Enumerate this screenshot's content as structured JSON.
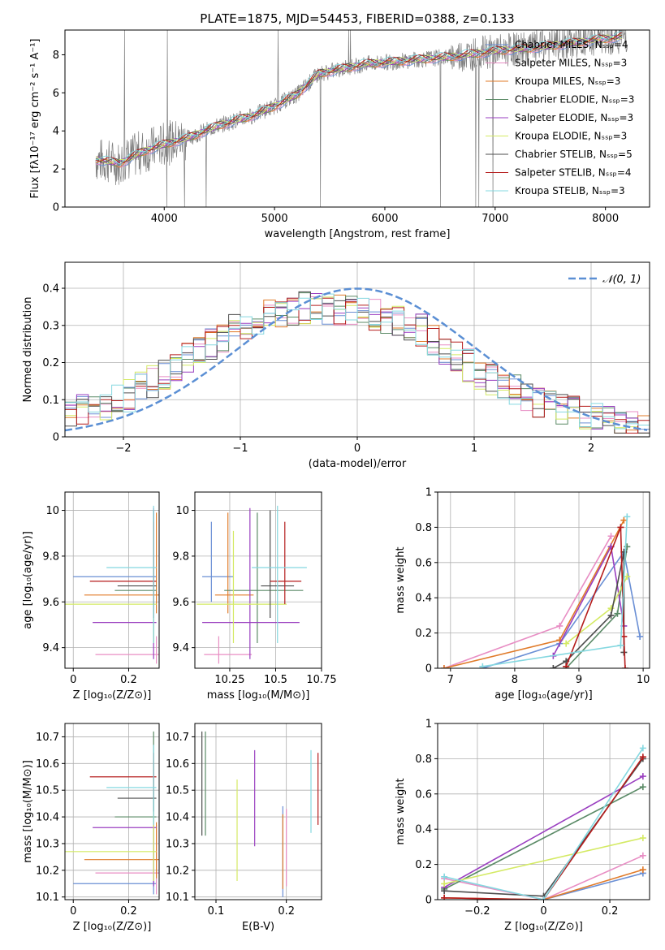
{
  "chart_data": [
    {
      "type": "line",
      "title": "PLATE=1875, MJD=54453, FIBERID=0388, z=0.133",
      "xlabel": "wavelength [Angstrom, rest frame]",
      "ylabel": "Flux [fλ10⁻¹⁷ erg cm⁻² s⁻¹ A⁻¹]",
      "xlim": [
        3100,
        8400
      ],
      "ylim": [
        0,
        9.3
      ],
      "xticks": [
        4000,
        5000,
        6000,
        7000,
        8000
      ],
      "yticks": [
        0,
        2,
        4,
        6,
        8
      ],
      "legend_position": "top-right",
      "series": [
        {
          "name": "Chabrier MILES, Nₛₛₚ=4",
          "color": "#6a8fd5"
        },
        {
          "name": "Salpeter MILES, Nₛₛₚ=3",
          "color": "#e88ec4"
        },
        {
          "name": "Kroupa MILES, Nₛₛₚ=3",
          "color": "#e07b2a"
        },
        {
          "name": "Chabrier ELODIE, Nₛₛₚ=3",
          "color": "#5a8a66"
        },
        {
          "name": "Salpeter ELODIE, Nₛₛₚ=3",
          "color": "#9a3fc0"
        },
        {
          "name": "Kroupa ELODIE, Nₛₛₚ=3",
          "color": "#d4ea64"
        },
        {
          "name": "Chabrier STELIB, Nₛₛₚ=5",
          "color": "#4d4d4d"
        },
        {
          "name": "Salpeter STELIB, Nₛₛₚ=4",
          "color": "#b51c1c"
        },
        {
          "name": "Kroupa STELIB, Nₛₛₚ=3",
          "color": "#85d8e0"
        }
      ],
      "continuum": {
        "x": [
          3380,
          3600,
          3800,
          4000,
          4200,
          4500,
          4800,
          5000,
          5200,
          5400,
          5800,
          6200,
          6600,
          7000,
          7400,
          7800,
          8200
        ],
        "y": [
          2.5,
          2.3,
          2.9,
          3.3,
          3.6,
          4.3,
          4.8,
          5.3,
          5.9,
          7.0,
          7.5,
          7.7,
          7.9,
          8.2,
          8.4,
          8.7,
          9.0
        ]
      }
    },
    {
      "type": "line",
      "xlabel": "(data-model)/error",
      "ylabel": "Normed distribution",
      "xlim": [
        -2.5,
        2.5
      ],
      "ylim": [
        0,
        0.47
      ],
      "xticks": [
        -2,
        -1,
        0,
        1,
        2
      ],
      "yticks": [
        0.0,
        0.1,
        0.2,
        0.3,
        0.4
      ],
      "legend": "𝒩(0, 1)",
      "gaussian": {
        "mean": 0,
        "sigma": 1,
        "color": "#5b8fd4"
      },
      "hist_shape": {
        "x": [
          -2.5,
          -2.0,
          -1.5,
          -1.0,
          -0.5,
          0.0,
          0.5,
          1.0,
          1.5,
          2.0,
          2.5
        ],
        "y": [
          0.06,
          0.1,
          0.2,
          0.3,
          0.35,
          0.34,
          0.3,
          0.18,
          0.1,
          0.05,
          0.02
        ]
      }
    },
    {
      "type": "scatter",
      "xlabel": "Z [log₁₀(Z/Z⊙)]",
      "ylabel": "age  [log₁₀(age/yr)]",
      "xlim": [
        -0.03,
        0.31
      ],
      "ylim": [
        9.31,
        10.08
      ],
      "xticks": [
        0.0,
        0.2
      ],
      "yticks": [
        9.4,
        9.6,
        9.8,
        10.0
      ],
      "points": [
        {
          "x": 0.29,
          "y": 9.71,
          "xerr": [
            0.29,
            0.01
          ],
          "yerr": [
            0.11,
            0.24
          ],
          "color": "#6a8fd5"
        },
        {
          "x": 0.3,
          "y": 9.37,
          "xerr": [
            0.22,
            0.01
          ],
          "yerr": [
            0.04,
            0.08
          ],
          "color": "#e88ec4"
        },
        {
          "x": 0.3,
          "y": 9.63,
          "xerr": [
            0.26,
            0.01
          ],
          "yerr": [
            0.08,
            0.36
          ],
          "color": "#e07b2a"
        },
        {
          "x": 0.29,
          "y": 9.65,
          "xerr": [
            0.14,
            0.01
          ],
          "yerr": [
            0.23,
            0.34
          ],
          "color": "#5a8a66"
        },
        {
          "x": 0.29,
          "y": 9.51,
          "xerr": [
            0.22,
            0.01
          ],
          "yerr": [
            0.16,
            0.5
          ],
          "color": "#9a3fc0"
        },
        {
          "x": 0.29,
          "y": 9.59,
          "xerr": [
            0.32,
            0.01
          ],
          "yerr": [
            0.17,
            0.32
          ],
          "color": "#d4ea64"
        },
        {
          "x": 0.29,
          "y": 9.67,
          "xerr": [
            0.13,
            0.01
          ],
          "yerr": [
            0.14,
            0.33
          ],
          "color": "#4d4d4d"
        },
        {
          "x": 0.29,
          "y": 9.69,
          "xerr": [
            0.23,
            0.01
          ],
          "yerr": [
            0.1,
            0.26
          ],
          "color": "#b51c1c"
        },
        {
          "x": 0.29,
          "y": 9.75,
          "xerr": [
            0.17,
            0.01
          ],
          "yerr": [
            0.33,
            0.27
          ],
          "color": "#85d8e0"
        }
      ]
    },
    {
      "type": "scatter",
      "xlabel": "mass [log₁₀(M/M⊙)]",
      "xlim": [
        10.06,
        10.75
      ],
      "ylim": [
        9.31,
        10.08
      ],
      "xticks": [
        10.25,
        10.5,
        10.75
      ],
      "yticks": [
        9.4,
        9.6,
        9.8,
        10.0
      ],
      "points": [
        {
          "x": 10.15,
          "y": 9.71,
          "xerr": [
            0.05,
            0.12
          ],
          "yerr": [
            0.11,
            0.24
          ],
          "color": "#6a8fd5"
        },
        {
          "x": 10.19,
          "y": 9.37,
          "xerr": [
            0.08,
            0.18
          ],
          "yerr": [
            0.04,
            0.08
          ],
          "color": "#e88ec4"
        },
        {
          "x": 10.24,
          "y": 9.63,
          "xerr": [
            0.07,
            0.14
          ],
          "yerr": [
            0.08,
            0.36
          ],
          "color": "#e07b2a"
        },
        {
          "x": 10.4,
          "y": 9.65,
          "xerr": [
            0.18,
            0.25
          ],
          "yerr": [
            0.23,
            0.34
          ],
          "color": "#5a8a66"
        },
        {
          "x": 10.36,
          "y": 9.51,
          "xerr": [
            0.26,
            0.27
          ],
          "yerr": [
            0.16,
            0.5
          ],
          "color": "#9a3fc0"
        },
        {
          "x": 10.27,
          "y": 9.59,
          "xerr": [
            0.2,
            0.29
          ],
          "yerr": [
            0.17,
            0.32
          ],
          "color": "#d4ea64"
        },
        {
          "x": 10.47,
          "y": 9.67,
          "xerr": [
            0.05,
            0.13
          ],
          "yerr": [
            0.14,
            0.33
          ],
          "color": "#4d4d4d"
        },
        {
          "x": 10.55,
          "y": 9.69,
          "xerr": [
            0.08,
            0.09
          ],
          "yerr": [
            0.1,
            0.26
          ],
          "color": "#b51c1c"
        },
        {
          "x": 10.51,
          "y": 9.75,
          "xerr": [
            0.14,
            0.16
          ],
          "yerr": [
            0.33,
            0.27
          ],
          "color": "#85d8e0"
        }
      ]
    },
    {
      "type": "line",
      "xlabel": "age  [log₁₀(age/yr)]",
      "ylabel": "mass weight",
      "xlim": [
        6.8,
        10.1
      ],
      "ylim": [
        0,
        1.0
      ],
      "xticks": [
        7,
        8,
        9,
        10
      ],
      "yticks": [
        0.0,
        0.2,
        0.4,
        0.6,
        0.8,
        1.0
      ],
      "series": [
        {
          "color": "#6a8fd5",
          "x": [
            7.5,
            8.7,
            9.7,
            9.95
          ],
          "y": [
            0.0,
            0.14,
            0.66,
            0.18
          ]
        },
        {
          "color": "#e88ec4",
          "x": [
            6.9,
            8.7,
            9.5
          ],
          "y": [
            0.0,
            0.24,
            0.75
          ]
        },
        {
          "color": "#e07b2a",
          "x": [
            6.9,
            8.7,
            9.7
          ],
          "y": [
            0.0,
            0.16,
            0.84
          ]
        },
        {
          "color": "#5a8a66",
          "x": [
            8.8,
            9.6,
            9.75
          ],
          "y": [
            0.0,
            0.31,
            0.69
          ]
        },
        {
          "color": "#9a3fc0",
          "x": [
            8.6,
            9.5,
            9.7
          ],
          "y": [
            0.07,
            0.69,
            0.24
          ]
        },
        {
          "color": "#d4ea64",
          "x": [
            8.8,
            9.5,
            9.75
          ],
          "y": [
            0.14,
            0.34,
            0.52
          ]
        },
        {
          "color": "#4d4d4d",
          "x": [
            8.6,
            8.8,
            9.5,
            9.7,
            9.7
          ],
          "y": [
            0.0,
            0.04,
            0.3,
            0.66,
            0.09
          ]
        },
        {
          "color": "#b51c1c",
          "x": [
            8.8,
            9.65,
            9.7,
            9.72
          ],
          "y": [
            0.01,
            0.8,
            0.18,
            0.0
          ]
        },
        {
          "color": "#85d8e0",
          "x": [
            7.5,
            9.65,
            9.75
          ],
          "y": [
            0.01,
            0.13,
            0.86
          ]
        }
      ]
    },
    {
      "type": "scatter",
      "xlabel": "Z [log₁₀(Z/Z⊙)]",
      "ylabel": "mass [log₁₀(M/M⊙)]",
      "xlim": [
        -0.03,
        0.31
      ],
      "ylim": [
        10.09,
        10.75
      ],
      "xticks": [
        0.0,
        0.2
      ],
      "yticks": [
        10.1,
        10.2,
        10.3,
        10.4,
        10.5,
        10.6,
        10.7
      ],
      "points": [
        {
          "x": 0.29,
          "y": 10.15,
          "yerr": [
            0.04,
            0.12
          ],
          "xerr": [
            0.29,
            0.01
          ],
          "color": "#6a8fd5"
        },
        {
          "x": 0.3,
          "y": 10.19,
          "yerr": [
            0.08,
            0.18
          ],
          "xerr": [
            0.22,
            0.01
          ],
          "color": "#e88ec4"
        },
        {
          "x": 0.3,
          "y": 10.24,
          "yerr": [
            0.07,
            0.14
          ],
          "xerr": [
            0.26,
            0.01
          ],
          "color": "#e07b2a"
        },
        {
          "x": 0.29,
          "y": 10.4,
          "yerr": [
            0.16,
            0.32
          ],
          "xerr": [
            0.14,
            0.01
          ],
          "color": "#5a8a66"
        },
        {
          "x": 0.29,
          "y": 10.36,
          "yerr": [
            0.22,
            0.22
          ],
          "xerr": [
            0.22,
            0.01
          ],
          "color": "#9a3fc0"
        },
        {
          "x": 0.29,
          "y": 10.27,
          "yerr": [
            0.11,
            0.26
          ],
          "xerr": [
            0.32,
            0.01
          ],
          "color": "#d4ea64"
        },
        {
          "x": 0.29,
          "y": 10.47,
          "yerr": [
            0.05,
            0.13
          ],
          "xerr": [
            0.13,
            0.01
          ],
          "color": "#4d4d4d"
        },
        {
          "x": 0.29,
          "y": 10.55,
          "yerr": [
            0.08,
            0.09
          ],
          "xerr": [
            0.23,
            0.01
          ],
          "color": "#b51c1c"
        },
        {
          "x": 0.29,
          "y": 10.51,
          "yerr": [
            0.14,
            0.16
          ],
          "xerr": [
            0.17,
            0.01
          ],
          "color": "#85d8e0"
        }
      ]
    },
    {
      "type": "scatter",
      "xlabel": "E(B-V)",
      "xlim": [
        0.07,
        0.25
      ],
      "ylim": [
        10.09,
        10.75
      ],
      "xticks": [
        0.1,
        0.2
      ],
      "yticks": [
        10.1,
        10.2,
        10.3,
        10.4,
        10.5,
        10.6,
        10.7
      ],
      "points": [
        {
          "x": 0.195,
          "y": 10.32,
          "yerr": [
            0.22,
            0.12
          ],
          "color": "#6a8fd5"
        },
        {
          "x": 0.2,
          "y": 10.27,
          "yerr": [
            0.13,
            0.16
          ],
          "color": "#e88ec4"
        },
        {
          "x": 0.195,
          "y": 10.27,
          "yerr": [
            0.14,
            0.14
          ],
          "color": "#e07b2a"
        },
        {
          "x": 0.085,
          "y": 10.53,
          "yerr": [
            0.2,
            0.19
          ],
          "color": "#5a8a66"
        },
        {
          "x": 0.155,
          "y": 10.47,
          "yerr": [
            0.18,
            0.18
          ],
          "color": "#9a3fc0"
        },
        {
          "x": 0.13,
          "y": 10.35,
          "yerr": [
            0.19,
            0.19
          ],
          "color": "#d4ea64"
        },
        {
          "x": 0.08,
          "y": 10.52,
          "yerr": [
            0.19,
            0.2
          ],
          "color": "#4d4d4d"
        },
        {
          "x": 0.245,
          "y": 10.5,
          "yerr": [
            0.13,
            0.14
          ],
          "color": "#b51c1c"
        },
        {
          "x": 0.235,
          "y": 10.5,
          "yerr": [
            0.16,
            0.15
          ],
          "color": "#85d8e0"
        }
      ]
    },
    {
      "type": "line",
      "xlabel": "Z [log₁₀(Z/Z⊙)]",
      "ylabel": "mass weight",
      "xlim": [
        -0.32,
        0.32
      ],
      "ylim": [
        0,
        1.0
      ],
      "xticks": [
        -0.2,
        0.0,
        0.2
      ],
      "yticks": [
        0.0,
        0.2,
        0.4,
        0.6,
        0.8,
        1.0
      ],
      "series": [
        {
          "color": "#6a8fd5",
          "x": [
            0.0,
            0.3
          ],
          "y": [
            0.0,
            0.15
          ]
        },
        {
          "color": "#e88ec4",
          "x": [
            -0.3,
            0.0,
            0.3
          ],
          "y": [
            0.12,
            0.0,
            0.25
          ]
        },
        {
          "color": "#e07b2a",
          "x": [
            -0.3,
            0.0,
            0.3
          ],
          "y": [
            0.01,
            0.0,
            0.17
          ]
        },
        {
          "color": "#5a8a66",
          "x": [
            -0.3,
            0.3
          ],
          "y": [
            0.06,
            0.64
          ]
        },
        {
          "color": "#9a3fc0",
          "x": [
            -0.3,
            0.3
          ],
          "y": [
            0.07,
            0.7
          ]
        },
        {
          "color": "#d4ea64",
          "x": [
            -0.3,
            0.3
          ],
          "y": [
            0.09,
            0.35
          ]
        },
        {
          "color": "#4d4d4d",
          "x": [
            -0.3,
            0.0,
            0.3
          ],
          "y": [
            0.05,
            0.02,
            0.8
          ]
        },
        {
          "color": "#b51c1c",
          "x": [
            -0.3,
            0.0,
            0.3
          ],
          "y": [
            0.01,
            0.0,
            0.81
          ]
        },
        {
          "color": "#85d8e0",
          "x": [
            -0.3,
            0.0,
            0.3
          ],
          "y": [
            0.13,
            0.0,
            0.86
          ]
        }
      ]
    }
  ]
}
